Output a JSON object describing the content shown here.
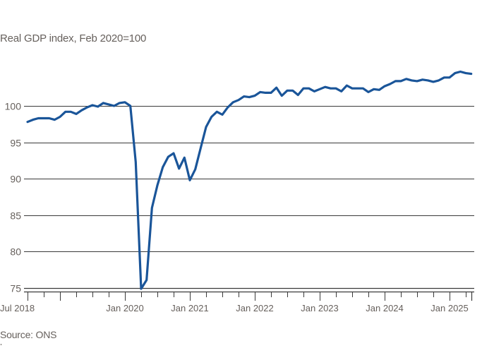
{
  "chart": {
    "subtitle": "Real GDP index, Feb 2020=100",
    "source": "Source: ONS"
  },
  "colors": {
    "line": "#1a5599",
    "grid": "#3a3a3a",
    "text": "#66605c",
    "background": "#ffffff"
  },
  "chart_data": {
    "type": "line",
    "title": "Real GDP index, Feb 2020=100",
    "xlabel": "",
    "ylabel": "",
    "source": "Source: ONS",
    "ylim": [
      75,
      105
    ],
    "yticks": [
      75,
      80,
      85,
      90,
      95,
      100
    ],
    "grid": true,
    "legend": null,
    "x_tick_labels": [
      "Jul 2018",
      "Jan 2020",
      "Jan 2021",
      "Jan 2022",
      "Jan 2023",
      "Jan 2024",
      "Jan 2025"
    ],
    "x_start": "2018-07",
    "x_frequency": "monthly",
    "x": [
      "2018-07",
      "2018-08",
      "2018-09",
      "2018-10",
      "2018-11",
      "2018-12",
      "2019-01",
      "2019-02",
      "2019-03",
      "2019-04",
      "2019-05",
      "2019-06",
      "2019-07",
      "2019-08",
      "2019-09",
      "2019-10",
      "2019-11",
      "2019-12",
      "2020-01",
      "2020-02",
      "2020-03",
      "2020-04",
      "2020-05",
      "2020-06",
      "2020-07",
      "2020-08",
      "2020-09",
      "2020-10",
      "2020-11",
      "2020-12",
      "2021-01",
      "2021-02",
      "2021-03",
      "2021-04",
      "2021-05",
      "2021-06",
      "2021-07",
      "2021-08",
      "2021-09",
      "2021-10",
      "2021-11",
      "2021-12",
      "2022-01",
      "2022-02",
      "2022-03",
      "2022-04",
      "2022-05",
      "2022-06",
      "2022-07",
      "2022-08",
      "2022-09",
      "2022-10",
      "2022-11",
      "2022-12",
      "2023-01",
      "2023-02",
      "2023-03",
      "2023-04",
      "2023-05",
      "2023-06",
      "2023-07",
      "2023-08",
      "2023-09",
      "2023-10",
      "2023-11",
      "2023-12",
      "2024-01",
      "2024-02",
      "2024-03",
      "2024-04",
      "2024-05",
      "2024-06",
      "2024-07",
      "2024-08",
      "2024-09",
      "2024-10",
      "2024-11",
      "2024-12",
      "2025-01",
      "2025-02",
      "2025-03",
      "2025-04",
      "2025-05"
    ],
    "series": [
      {
        "name": "Real GDP index",
        "values": [
          97.8,
          98.1,
          98.3,
          98.3,
          98.3,
          98.1,
          98.5,
          99.2,
          99.2,
          98.9,
          99.4,
          99.8,
          100.1,
          99.9,
          100.4,
          100.2,
          100.0,
          100.4,
          100.5,
          100.0,
          92.3,
          74.9,
          76.1,
          86.0,
          89.1,
          91.6,
          93.0,
          93.5,
          91.4,
          92.9,
          89.8,
          91.3,
          94.2,
          97.1,
          98.5,
          99.2,
          98.8,
          99.8,
          100.5,
          100.8,
          101.3,
          101.2,
          101.4,
          101.9,
          101.8,
          101.8,
          102.5,
          101.4,
          102.1,
          102.1,
          101.5,
          102.4,
          102.4,
          102.0,
          102.3,
          102.6,
          102.4,
          102.4,
          102.0,
          102.8,
          102.4,
          102.4,
          102.4,
          101.9,
          102.3,
          102.2,
          102.7,
          103.0,
          103.4,
          103.4,
          103.7,
          103.5,
          103.4,
          103.6,
          103.5,
          103.3,
          103.5,
          103.9,
          103.9,
          104.5,
          104.7,
          104.5,
          104.4
        ]
      }
    ]
  }
}
